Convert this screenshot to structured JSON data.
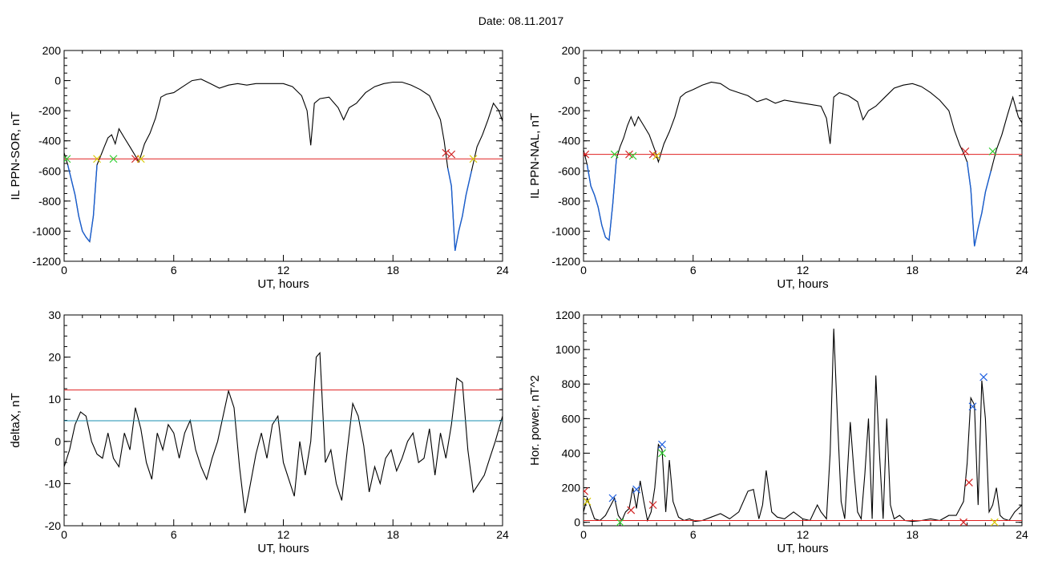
{
  "page": {
    "title": "Date:  08.11.2017"
  },
  "colors": {
    "trace": "#000000",
    "below_threshold": "#1a5fd0",
    "red_line": "#e02020",
    "blue_line": "#1a8fb0",
    "green_mark": "#2ecc2e",
    "yellow_mark": "#d8c800",
    "blue_mark": "#2060e0",
    "red_mark": "#d02020"
  },
  "chart_data": [
    {
      "type": "line",
      "ylabel": "IL PPN-SOR, nT",
      "xlabel": "UT, hours",
      "xlim": [
        0,
        24
      ],
      "ylim": [
        -1200,
        200
      ],
      "xticks": [
        0,
        6,
        12,
        18,
        24
      ],
      "yticks": [
        200,
        0,
        -200,
        -400,
        -600,
        -800,
        -1000,
        -1200
      ],
      "threshold": {
        "value": -520,
        "color": "red"
      },
      "series": [
        {
          "x": [
            0,
            0.2,
            0.4,
            0.6,
            0.8,
            1.0,
            1.2,
            1.4,
            1.6,
            1.8,
            2.0,
            2.2,
            2.4,
            2.6,
            2.8,
            3.0,
            3.3,
            3.6,
            3.9,
            4.1,
            4.4,
            4.7,
            5.0,
            5.3,
            5.6,
            6.0,
            6.5,
            7.0,
            7.5,
            8.0,
            8.5,
            9.0,
            9.5,
            10.0,
            10.5,
            11.0,
            11.5,
            12.0,
            12.5,
            13.0,
            13.3,
            13.5,
            13.7,
            14.0,
            14.5,
            15.0,
            15.3,
            15.6,
            16.0,
            16.5,
            17.0,
            17.5,
            18.0,
            18.5,
            19.0,
            19.5,
            20.0,
            20.3,
            20.6,
            20.8,
            21.0,
            21.2,
            21.4,
            21.6,
            21.8,
            22.0,
            22.3,
            22.6,
            22.9,
            23.2,
            23.5,
            23.8,
            24.0
          ],
          "values": [
            -480,
            -560,
            -660,
            -760,
            -900,
            -1000,
            -1040,
            -1070,
            -900,
            -560,
            -500,
            -440,
            -380,
            -360,
            -420,
            -320,
            -380,
            -440,
            -500,
            -540,
            -420,
            -350,
            -250,
            -110,
            -90,
            -80,
            -40,
            0,
            10,
            -20,
            -50,
            -30,
            -20,
            -30,
            -20,
            -20,
            -20,
            -20,
            -40,
            -100,
            -200,
            -430,
            -150,
            -120,
            -110,
            -180,
            -260,
            -180,
            -150,
            -80,
            -40,
            -20,
            -10,
            -10,
            -30,
            -60,
            -100,
            -180,
            -260,
            -400,
            -580,
            -700,
            -1130,
            -1000,
            -900,
            -760,
            -600,
            -440,
            -360,
            -260,
            -150,
            -200,
            -270
          ]
        }
      ],
      "markers": [
        {
          "x": 0.15,
          "y": -520,
          "color": "green"
        },
        {
          "x": 1.8,
          "y": -520,
          "color": "yellow"
        },
        {
          "x": 2.7,
          "y": -520,
          "color": "green"
        },
        {
          "x": 3.9,
          "y": -520,
          "color": "red"
        },
        {
          "x": 4.2,
          "y": -520,
          "color": "yellow"
        },
        {
          "x": 20.9,
          "y": -480,
          "color": "red"
        },
        {
          "x": 21.2,
          "y": -490,
          "color": "red"
        },
        {
          "x": 22.4,
          "y": -520,
          "color": "yellow"
        }
      ]
    },
    {
      "type": "line",
      "ylabel": "IL PPN-NAL, nT",
      "xlabel": "UT, hours",
      "xlim": [
        0,
        24
      ],
      "ylim": [
        -1200,
        200
      ],
      "xticks": [
        0,
        6,
        12,
        18,
        24
      ],
      "yticks": [
        200,
        0,
        -200,
        -400,
        -600,
        -800,
        -1000,
        -1200
      ],
      "threshold": {
        "value": -490,
        "color": "red"
      },
      "series": [
        {
          "x": [
            0,
            0.2,
            0.4,
            0.6,
            0.8,
            1.0,
            1.2,
            1.4,
            1.6,
            1.8,
            2.0,
            2.2,
            2.4,
            2.6,
            2.8,
            3.0,
            3.3,
            3.6,
            3.9,
            4.1,
            4.4,
            4.7,
            5.0,
            5.3,
            5.6,
            6.0,
            6.5,
            7.0,
            7.5,
            8.0,
            8.5,
            9.0,
            9.5,
            10.0,
            10.5,
            11.0,
            11.5,
            12.0,
            12.5,
            13.0,
            13.3,
            13.5,
            13.7,
            14.0,
            14.5,
            15.0,
            15.3,
            15.6,
            16.0,
            16.5,
            17.0,
            17.5,
            18.0,
            18.5,
            19.0,
            19.5,
            20.0,
            20.3,
            20.6,
            20.8,
            21.0,
            21.2,
            21.4,
            21.6,
            21.8,
            22.0,
            22.3,
            22.6,
            22.9,
            23.2,
            23.5,
            23.8,
            24.0
          ],
          "values": [
            -460,
            -560,
            -700,
            -760,
            -840,
            -960,
            -1040,
            -1060,
            -820,
            -520,
            -440,
            -380,
            -300,
            -240,
            -300,
            -240,
            -300,
            -360,
            -460,
            -540,
            -420,
            -340,
            -240,
            -110,
            -80,
            -60,
            -30,
            -10,
            -20,
            -60,
            -80,
            -100,
            -140,
            -120,
            -150,
            -130,
            -140,
            -150,
            -160,
            -170,
            -250,
            -420,
            -110,
            -80,
            -100,
            -140,
            -260,
            -200,
            -170,
            -110,
            -50,
            -30,
            -20,
            -40,
            -80,
            -130,
            -200,
            -330,
            -430,
            -480,
            -540,
            -720,
            -1100,
            -980,
            -880,
            -740,
            -600,
            -460,
            -360,
            -230,
            -110,
            -240,
            -280
          ]
        }
      ],
      "markers": [
        {
          "x": 0.1,
          "y": -490,
          "color": "red"
        },
        {
          "x": 1.7,
          "y": -490,
          "color": "green"
        },
        {
          "x": 2.5,
          "y": -490,
          "color": "red"
        },
        {
          "x": 2.7,
          "y": -500,
          "color": "green"
        },
        {
          "x": 3.8,
          "y": -490,
          "color": "red"
        },
        {
          "x": 4.0,
          "y": -500,
          "color": "yellow"
        },
        {
          "x": 20.9,
          "y": -470,
          "color": "red"
        },
        {
          "x": 22.4,
          "y": -470,
          "color": "green"
        }
      ]
    },
    {
      "type": "line",
      "ylabel": "deltaX, nT",
      "xlabel": "UT, hours",
      "xlim": [
        0,
        24
      ],
      "ylim": [
        -20,
        30
      ],
      "xticks": [
        0,
        6,
        12,
        18,
        24
      ],
      "yticks": [
        30,
        20,
        10,
        0,
        -10,
        -20
      ],
      "thresholds": [
        {
          "value": 12.2,
          "color": "red"
        },
        {
          "value": 4.9,
          "color": "blue"
        }
      ],
      "series": [
        {
          "x": [
            0,
            0.3,
            0.6,
            0.9,
            1.2,
            1.5,
            1.8,
            2.1,
            2.4,
            2.7,
            3.0,
            3.3,
            3.6,
            3.9,
            4.2,
            4.5,
            4.8,
            5.1,
            5.4,
            5.7,
            6.0,
            6.3,
            6.6,
            6.9,
            7.2,
            7.5,
            7.8,
            8.1,
            8.4,
            8.7,
            9.0,
            9.3,
            9.6,
            9.9,
            10.2,
            10.5,
            10.8,
            11.1,
            11.4,
            11.7,
            12.0,
            12.3,
            12.6,
            12.9,
            13.2,
            13.5,
            13.8,
            14.0,
            14.3,
            14.6,
            14.9,
            15.2,
            15.5,
            15.8,
            16.1,
            16.4,
            16.7,
            17.0,
            17.3,
            17.6,
            17.9,
            18.2,
            18.5,
            18.8,
            19.1,
            19.4,
            19.7,
            20.0,
            20.3,
            20.6,
            20.9,
            21.2,
            21.5,
            21.8,
            22.1,
            22.4,
            22.7,
            23.0,
            23.3,
            23.6,
            24.0
          ],
          "values": [
            -6,
            -2,
            4,
            7,
            6,
            0,
            -3,
            -4,
            2,
            -4,
            -6,
            2,
            -2,
            8,
            3,
            -5,
            -9,
            2,
            -2,
            4,
            2,
            -4,
            2,
            5,
            -2,
            -6,
            -9,
            -4,
            0,
            6,
            12,
            8,
            -6,
            -17,
            -10,
            -3,
            2,
            -4,
            4,
            6,
            -5,
            -9,
            -13,
            0,
            -8,
            0,
            20,
            21,
            -5,
            -2,
            -10,
            -14,
            -2,
            9,
            6,
            -1,
            -12,
            -6,
            -10,
            -4,
            -2,
            -7,
            -4,
            0,
            2,
            -5,
            -4,
            3,
            -8,
            2,
            -4,
            4,
            15,
            14,
            -2,
            -12,
            -10,
            -8,
            -4,
            0,
            6
          ]
        }
      ]
    },
    {
      "type": "line",
      "ylabel": "Hor. power, nT^2",
      "xlabel": "UT, hours",
      "xlim": [
        0,
        24
      ],
      "ylim": [
        -20,
        1200
      ],
      "xticks": [
        0,
        6,
        12,
        18,
        24
      ],
      "yticks": [
        1200,
        1000,
        800,
        600,
        400,
        200,
        0
      ],
      "threshold": {
        "value": 10,
        "color": "red"
      },
      "series": [
        {
          "x": [
            0,
            0.2,
            0.4,
            0.6,
            0.9,
            1.2,
            1.5,
            1.7,
            1.9,
            2.1,
            2.3,
            2.5,
            2.7,
            2.9,
            3.1,
            3.3,
            3.5,
            3.7,
            3.9,
            4.1,
            4.3,
            4.5,
            4.7,
            4.9,
            5.2,
            5.5,
            5.8,
            6.1,
            6.5,
            7.0,
            7.5,
            8.0,
            8.5,
            9.0,
            9.3,
            9.6,
            9.8,
            10.0,
            10.3,
            10.6,
            11.0,
            11.5,
            12.0,
            12.4,
            12.8,
            13.0,
            13.3,
            13.5,
            13.7,
            13.9,
            14.1,
            14.3,
            14.6,
            14.8,
            15.0,
            15.2,
            15.4,
            15.6,
            15.8,
            16.0,
            16.2,
            16.4,
            16.6,
            16.8,
            17.0,
            17.3,
            17.6,
            18.0,
            18.5,
            19.0,
            19.5,
            20.0,
            20.4,
            20.8,
            21.0,
            21.2,
            21.4,
            21.6,
            21.8,
            22.0,
            22.2,
            22.4,
            22.6,
            22.8,
            23.0,
            23.3,
            23.6,
            24.0
          ],
          "values": [
            60,
            140,
            80,
            20,
            10,
            40,
            100,
            140,
            40,
            10,
            60,
            80,
            200,
            80,
            240,
            120,
            10,
            60,
            200,
            450,
            420,
            60,
            360,
            120,
            30,
            10,
            20,
            5,
            10,
            30,
            50,
            20,
            60,
            180,
            190,
            20,
            100,
            300,
            60,
            30,
            20,
            60,
            20,
            10,
            100,
            60,
            20,
            400,
            1120,
            600,
            120,
            20,
            580,
            300,
            60,
            20,
            280,
            600,
            20,
            850,
            400,
            20,
            600,
            100,
            20,
            40,
            10,
            5,
            10,
            20,
            10,
            40,
            40,
            120,
            340,
            720,
            680,
            100,
            820,
            600,
            60,
            100,
            200,
            40,
            20,
            10,
            60,
            100
          ]
        }
      ],
      "markers": [
        {
          "x": 0.05,
          "y": 180,
          "color": "red"
        },
        {
          "x": 0.2,
          "y": 120,
          "color": "yellow"
        },
        {
          "x": 1.6,
          "y": 140,
          "color": "blue"
        },
        {
          "x": 2.0,
          "y": 0,
          "color": "green"
        },
        {
          "x": 2.6,
          "y": 70,
          "color": "red"
        },
        {
          "x": 2.9,
          "y": 190,
          "color": "blue"
        },
        {
          "x": 3.8,
          "y": 100,
          "color": "red"
        },
        {
          "x": 4.3,
          "y": 450,
          "color": "blue"
        },
        {
          "x": 4.3,
          "y": 400,
          "color": "green"
        },
        {
          "x": 20.8,
          "y": 0,
          "color": "red"
        },
        {
          "x": 21.1,
          "y": 230,
          "color": "red"
        },
        {
          "x": 21.3,
          "y": 670,
          "color": "blue"
        },
        {
          "x": 21.9,
          "y": 840,
          "color": "blue"
        },
        {
          "x": 22.5,
          "y": 0,
          "color": "yellow"
        }
      ]
    }
  ]
}
